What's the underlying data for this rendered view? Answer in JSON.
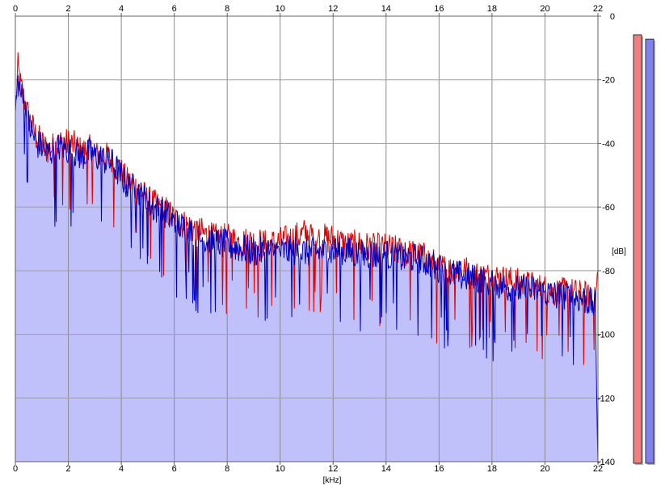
{
  "chart_data": {
    "type": "area",
    "xlabel": "[kHz]",
    "ylabel": "[dB]",
    "xlim": [
      0,
      22
    ],
    "ylim": [
      -140,
      0
    ],
    "x_ticks": [
      "0",
      "2",
      "4",
      "6",
      "8",
      "10",
      "12",
      "14",
      "16",
      "18",
      "20",
      "22"
    ],
    "y_ticks": [
      "0",
      "-20",
      "-40",
      "-60",
      "-80",
      "-100",
      "-120",
      "-140"
    ],
    "grid": true,
    "series": [
      {
        "color": "#e00000",
        "fill": false,
        "x": [
          0,
          0.1,
          0.2,
          0.3,
          0.5,
          0.8,
          1.0,
          1.2,
          1.5,
          1.7,
          2.0,
          2.3,
          2.5,
          2.8,
          3.0,
          3.3,
          3.6,
          3.9,
          4.2,
          4.6,
          5.0,
          5.4,
          5.8,
          6.0,
          6.5,
          7.0,
          7.5,
          8.0,
          8.5,
          9.0,
          9.5,
          10.0,
          10.5,
          11.0,
          11.5,
          12.0,
          12.5,
          13.0,
          13.5,
          14.0,
          14.5,
          15.0,
          15.5,
          16.0,
          16.5,
          17.0,
          17.5,
          18.0,
          18.5,
          19.0,
          19.5,
          20.0,
          20.5,
          21.0,
          21.5,
          21.9,
          22.0
        ],
        "values": [
          -30,
          -16,
          -22,
          -25,
          -32,
          -38,
          -40,
          -42,
          -41,
          -40,
          -40,
          -41,
          -43,
          -42,
          -44,
          -44,
          -45,
          -48,
          -52,
          -54,
          -58,
          -60,
          -62,
          -64,
          -66,
          -68,
          -70,
          -70,
          -71,
          -71,
          -72,
          -71,
          -70,
          -68,
          -70,
          -70,
          -72,
          -72,
          -73,
          -73,
          -74,
          -75,
          -76,
          -79,
          -80,
          -80,
          -82,
          -82,
          -83,
          -84,
          -85,
          -86,
          -87,
          -87,
          -88,
          -90,
          -80
        ]
      },
      {
        "color": "#0000c0",
        "fill": true,
        "fill_color": "#c0c0fa",
        "x": [
          0,
          0.1,
          0.2,
          0.3,
          0.5,
          0.8,
          1.0,
          1.2,
          1.5,
          1.7,
          2.0,
          2.3,
          2.5,
          2.8,
          3.0,
          3.3,
          3.6,
          3.9,
          4.2,
          4.6,
          5.0,
          5.4,
          5.8,
          6.0,
          6.5,
          7.0,
          7.5,
          8.0,
          8.5,
          9.0,
          9.5,
          10.0,
          10.5,
          11.0,
          11.5,
          12.0,
          12.5,
          13.0,
          13.5,
          14.0,
          14.5,
          15.0,
          15.5,
          16.0,
          16.5,
          17.0,
          17.5,
          18.0,
          18.5,
          19.0,
          19.5,
          20.0,
          20.5,
          21.0,
          21.5,
          21.9,
          22.0
        ],
        "values": [
          -30,
          -20,
          -24,
          -27,
          -34,
          -40,
          -41,
          -43,
          -42,
          -41,
          -42,
          -43,
          -44,
          -43,
          -44,
          -45,
          -46,
          -49,
          -53,
          -55,
          -59,
          -61,
          -63,
          -65,
          -67,
          -70,
          -71,
          -72,
          -73,
          -74,
          -74,
          -74,
          -74,
          -74,
          -74,
          -74,
          -74,
          -75,
          -75,
          -75,
          -76,
          -76,
          -77,
          -80,
          -81,
          -82,
          -83,
          -84,
          -85,
          -86,
          -86,
          -87,
          -88,
          -88,
          -89,
          -91,
          -140
        ]
      }
    ]
  },
  "level_meters": [
    {
      "color": "#f08080",
      "level": 0.0
    },
    {
      "color": "#8080f0",
      "level": 0.01
    }
  ]
}
